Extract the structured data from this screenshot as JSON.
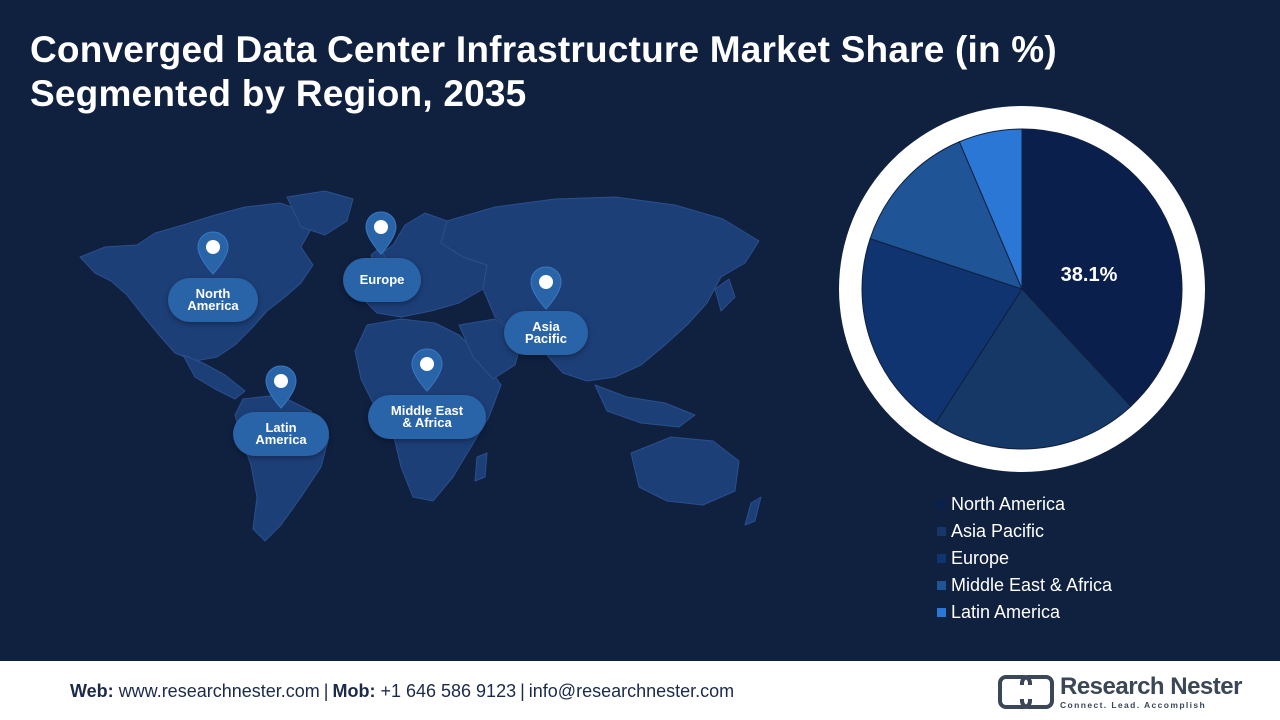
{
  "title": {
    "line1": "Converged Data Center Infrastructure Market Share (in %)",
    "line2": "Segmented by Region, 2035"
  },
  "map": {
    "markers": [
      {
        "id": "north-america",
        "lines": [
          "North",
          "America"
        ]
      },
      {
        "id": "europe",
        "lines": [
          "Europe"
        ]
      },
      {
        "id": "asia-pacific",
        "lines": [
          "Asia",
          "Pacific"
        ]
      },
      {
        "id": "latin-america",
        "lines": [
          "Latin",
          "America"
        ]
      },
      {
        "id": "middle-east-africa",
        "lines": [
          "Middle East",
          "& Africa"
        ]
      }
    ]
  },
  "chart_data": {
    "type": "pie",
    "slices": [
      {
        "label": "North America",
        "value": 38.1,
        "color": "#0b1f4d",
        "data_label": "38.1%"
      },
      {
        "label": "Asia Pacific",
        "value": 21,
        "color": "#153866"
      },
      {
        "label": "Europe",
        "value": 21,
        "color": "#0f3470"
      },
      {
        "label": "Middle East & Africa",
        "value": 13.5,
        "color": "#1f5596"
      },
      {
        "label": "Latin America",
        "value": 6.4,
        "color": "#2a77d6"
      }
    ],
    "legend_position": "bottom-right"
  },
  "footer": {
    "web_label": "Web:",
    "web_value": "www.researchnester.com",
    "mob_label": "Mob:",
    "mob_value": "+1 646 586 9123",
    "email": "info@researchnester.com",
    "logo_name": "Research Nester",
    "logo_tagline": "Connect. Lead. Accomplish"
  }
}
